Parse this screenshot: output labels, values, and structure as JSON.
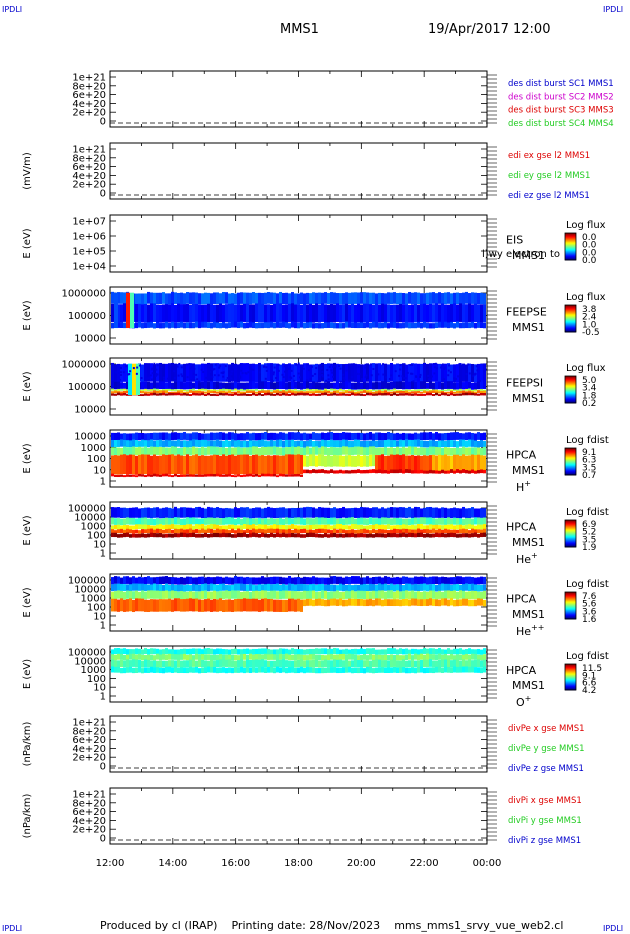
{
  "header": {
    "corner_left": "IPDLI",
    "corner_right": "IPDLI",
    "mission": "MMS1",
    "date_time": "19/Apr/2017 12:00"
  },
  "footer": {
    "corner_left": "IPDLI",
    "corner_right": "IPDLI",
    "produced_by": "Produced by cl (IRAP)",
    "printing_date": "Printing date: 28/Nov/2023",
    "file_name": "mms_mms1_srvy_vue_web2.cl"
  },
  "colors": {
    "black": "#000000",
    "red": "#dd0000",
    "green": "#22cc22",
    "blue": "#0000cc",
    "magenta": "#cc00cc",
    "cyan": "#00b8e0"
  },
  "chart_data": {
    "type": "heatmap",
    "x_ticks": [
      "12:00",
      "14:00",
      "16:00",
      "18:00",
      "20:00",
      "22:00",
      "00:00"
    ],
    "x_range_hours": [
      12,
      24
    ],
    "panels": [
      {
        "id": "des-dist",
        "kind": "line",
        "ylabel": "",
        "y_ticks": [
          "1e+21",
          "8e+20",
          "6e+20",
          "4e+20",
          "2e+20",
          "0"
        ],
        "legend": [
          {
            "text": "des dist burst SC1 MMS1",
            "color": "#0000cc"
          },
          {
            "text": "des dist burst SC2 MMS2",
            "color": "#cc00cc"
          },
          {
            "text": "des dist burst SC3 MMS3",
            "color": "#dd0000"
          },
          {
            "text": "des dist burst SC4 MMS4",
            "color": "#22cc22"
          }
        ]
      },
      {
        "id": "edi-e",
        "kind": "line",
        "ylabel": "(mV/m)",
        "y_ticks": [
          "1e+21",
          "8e+20",
          "6e+20",
          "4e+20",
          "2e+20",
          "0"
        ],
        "legend": [
          {
            "text": "edi ex gse l2 MMS1",
            "color": "#dd0000"
          },
          {
            "text": "edi ey gse l2 MMS1",
            "color": "#22cc22"
          },
          {
            "text": "edi ez gse l2 MMS1",
            "color": "#0000cc"
          }
        ]
      },
      {
        "id": "eis",
        "kind": "spectrogram",
        "ylabel": "E (eV)",
        "y_ticks": [
          "1e+07",
          "1e+06",
          "1e+05",
          "1e+04"
        ],
        "instrument": [
          "EIS",
          "MMS1"
        ],
        "overlay_text": "l)wy electron to",
        "colorbar_title": "Log flux",
        "colorbar_ticks": [
          "0.0",
          "0.0",
          "0.0",
          "0.0"
        ],
        "fill": "none"
      },
      {
        "id": "feeps-e",
        "kind": "spectrogram",
        "ylabel": "E (eV)",
        "y_ticks": [
          "1000000",
          "100000",
          "10000"
        ],
        "instrument": [
          "FEEPSE",
          "MMS1"
        ],
        "colorbar_title": "Log flux",
        "colorbar_ticks": [
          "3.8",
          "2.4",
          "1.0",
          "-0.5"
        ],
        "fill": "feepse"
      },
      {
        "id": "feeps-i",
        "kind": "spectrogram",
        "ylabel": "E (eV)",
        "y_ticks": [
          "1000000",
          "100000",
          "10000"
        ],
        "instrument": [
          "FEEPSI",
          "MMS1"
        ],
        "colorbar_title": "Log flux",
        "colorbar_ticks": [
          "5.0",
          "3.4",
          "1.8",
          "0.2"
        ],
        "fill": "feepsi"
      },
      {
        "id": "hpca-h",
        "kind": "spectrogram",
        "ylabel": "E (eV)",
        "y_ticks": [
          "10000",
          "1000",
          "100",
          "10",
          "1"
        ],
        "instrument": [
          "HPCA",
          "MMS1"
        ],
        "species": "H",
        "species_sup": "+",
        "colorbar_title": "Log fdist",
        "colorbar_ticks": [
          "9.1",
          "6.3",
          "3.5",
          "0.7"
        ],
        "fill": "hpca-h"
      },
      {
        "id": "hpca-he",
        "kind": "spectrogram",
        "ylabel": "E (eV)",
        "y_ticks": [
          "100000",
          "10000",
          "1000",
          "100",
          "10",
          "1"
        ],
        "instrument": [
          "HPCA",
          "MMS1"
        ],
        "species": "He",
        "species_sup": "+",
        "colorbar_title": "Log fdist",
        "colorbar_ticks": [
          "6.9",
          "5.2",
          "3.5",
          "1.9"
        ],
        "fill": "hpca-he"
      },
      {
        "id": "hpca-hepp",
        "kind": "spectrogram",
        "ylabel": "E (eV)",
        "y_ticks": [
          "100000",
          "10000",
          "1000",
          "100",
          "10",
          "1"
        ],
        "instrument": [
          "HPCA",
          "MMS1"
        ],
        "species": "He",
        "species_sup": "++",
        "colorbar_title": "Log fdist",
        "colorbar_ticks": [
          "7.6",
          "5.6",
          "3.6",
          "1.6"
        ],
        "fill": "hpca-hepp"
      },
      {
        "id": "hpca-o",
        "kind": "spectrogram",
        "ylabel": "E (eV)",
        "y_ticks": [
          "100000",
          "10000",
          "1000",
          "100",
          "10",
          "1"
        ],
        "instrument": [
          "HPCA",
          "MMS1"
        ],
        "species": "O",
        "species_sup": "+",
        "colorbar_title": "Log fdist",
        "colorbar_ticks": [
          "11.5",
          "9.1",
          "6.6",
          "4.2"
        ],
        "fill": "hpca-o"
      },
      {
        "id": "divpe",
        "kind": "line",
        "ylabel": "(nPa/km)",
        "y_ticks": [
          "1e+21",
          "8e+20",
          "6e+20",
          "4e+20",
          "2e+20",
          "0"
        ],
        "legend": [
          {
            "text": "divPe x gse MMS1",
            "color": "#dd0000"
          },
          {
            "text": "divPe y gse MMS1",
            "color": "#22cc22"
          },
          {
            "text": "divPe z gse MMS1",
            "color": "#0000cc"
          }
        ]
      },
      {
        "id": "divpi",
        "kind": "line",
        "ylabel": "(nPa/km)",
        "y_ticks": [
          "1e+21",
          "8e+20",
          "6e+20",
          "4e+20",
          "2e+20",
          "0"
        ],
        "legend": [
          {
            "text": "divPi x gse MMS1",
            "color": "#dd0000"
          },
          {
            "text": "divPi y gse MMS1",
            "color": "#22cc22"
          },
          {
            "text": "divPi z gse MMS1",
            "color": "#0000cc"
          }
        ]
      }
    ]
  }
}
